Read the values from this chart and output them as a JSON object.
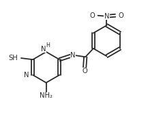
{
  "bg_color": "#ffffff",
  "line_color": "#2a2a2a",
  "lw": 1.3,
  "fs": 7.2,
  "figsize": [
    2.17,
    1.83
  ],
  "dpi": 100,
  "xlim": [
    0,
    10
  ],
  "ylim": [
    0,
    8.45
  ]
}
